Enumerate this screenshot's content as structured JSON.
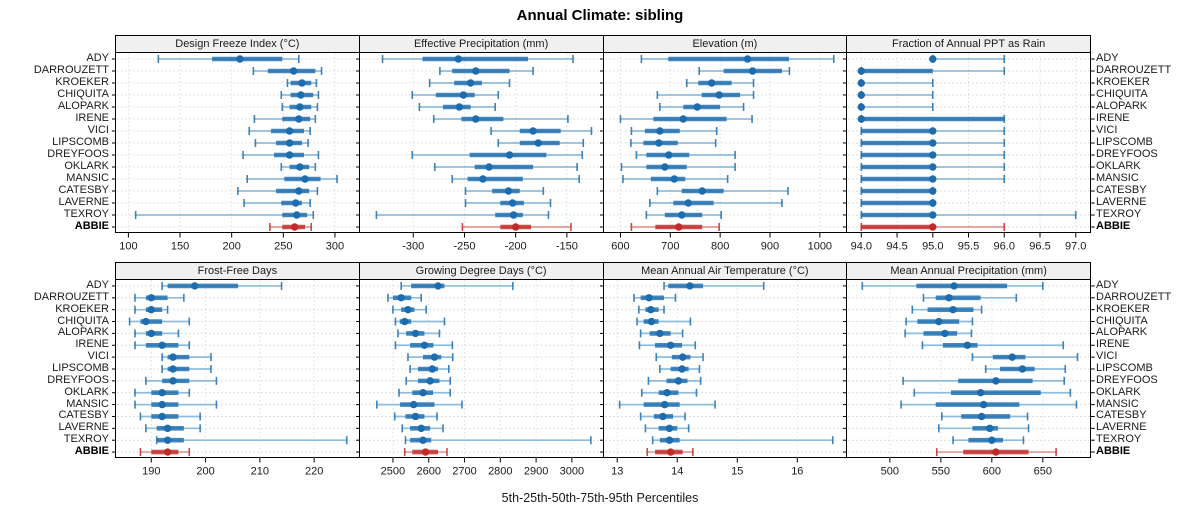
{
  "title": "Annual Climate: sibling",
  "caption": "5th-25th-50th-75th-95th Percentiles",
  "chart_data": {
    "type": "dotplot",
    "subtype": "percentile-range-trellis",
    "title": "Annual Climate: sibling",
    "caption": "5th-25th-50th-75th-95th Percentiles",
    "percentiles": [
      "5th",
      "25th",
      "50th",
      "75th",
      "95th"
    ],
    "sites": [
      "ADY",
      "DARROUZETT",
      "KROEKER",
      "CHIQUITA",
      "ALOPARK",
      "IRENE",
      "VICI",
      "LIPSCOMB",
      "DREYFOOS",
      "OKLARK",
      "MANSIC",
      "CATESBY",
      "LAVERNE",
      "TEXROY",
      "ABBIE"
    ],
    "highlight_site": "ABBIE",
    "colors": {
      "series": "#1c6cae",
      "series_light": "#8fbcdc",
      "highlight": "#c02a28",
      "highlight_light": "#de9a96",
      "strip_bg": "#f0f0f0",
      "grid": "#d4d4d4",
      "border": "#000000"
    },
    "panels": [
      {
        "label": "Design Freeze Index (°C)",
        "row": 0,
        "col": 0,
        "xlim": [
          88,
          324
        ],
        "ticks": [
          100,
          150,
          200,
          250,
          300
        ],
        "tick_labels": [
          "100",
          "150",
          "200",
          "250",
          "300"
        ],
        "values": [
          [
            129,
            181,
            208,
            249,
            265
          ],
          [
            221,
            235,
            260,
            281,
            287
          ],
          [
            254,
            257,
            268,
            277,
            282
          ],
          [
            248,
            257,
            267,
            279,
            284
          ],
          [
            249,
            256,
            266,
            277,
            283
          ],
          [
            222,
            249,
            265,
            276,
            281
          ],
          [
            217,
            238,
            256,
            270,
            276
          ],
          [
            223,
            243,
            256,
            268,
            274
          ],
          [
            211,
            241,
            256,
            270,
            284
          ],
          [
            248,
            256,
            266,
            275,
            281
          ],
          [
            215,
            251,
            271,
            286,
            302
          ],
          [
            206,
            243,
            265,
            275,
            283
          ],
          [
            212,
            248,
            262,
            268,
            276
          ],
          [
            107,
            249,
            263,
            273,
            279
          ],
          [
            237,
            249,
            261,
            271,
            277
          ]
        ]
      },
      {
        "label": "Effective Precipitation (mm)",
        "row": 0,
        "col": 1,
        "xlim": [
          -352,
          -114
        ],
        "ticks": [
          -300,
          -250,
          -200,
          -150
        ],
        "tick_labels": [
          "-300",
          "-250",
          "-200",
          "-150"
        ],
        "values": [
          [
            -330,
            -291,
            -256,
            -188,
            -144
          ],
          [
            -274,
            -262,
            -239,
            -206,
            -183
          ],
          [
            -284,
            -260,
            -244,
            -233,
            -206
          ],
          [
            -301,
            -278,
            -251,
            -240,
            -217
          ],
          [
            -294,
            -271,
            -255,
            -244,
            -220
          ],
          [
            -280,
            -253,
            -239,
            -212,
            -149
          ],
          [
            -224,
            -196,
            -183,
            -156,
            -126
          ],
          [
            -217,
            -196,
            -178,
            -157,
            -134
          ],
          [
            -301,
            -245,
            -206,
            -170,
            -135
          ],
          [
            -279,
            -240,
            -226,
            -183,
            -140
          ],
          [
            -262,
            -247,
            -232,
            -193,
            -138
          ],
          [
            -249,
            -223,
            -207,
            -196,
            -173
          ],
          [
            -249,
            -215,
            -203,
            -192,
            -166
          ],
          [
            -336,
            -220,
            -202,
            -193,
            -168
          ],
          [
            -252,
            -215,
            -200,
            -185,
            -146
          ]
        ]
      },
      {
        "label": "Elevation (m)",
        "row": 0,
        "col": 2,
        "xlim": [
          567,
          1056
        ],
        "ticks": [
          600,
          700,
          800,
          900,
          1000
        ],
        "tick_labels": [
          "600",
          "700",
          "800",
          "900",
          "1000"
        ],
        "values": [
          [
            642,
            696,
            855,
            938,
            1028
          ],
          [
            758,
            807,
            865,
            924,
            939
          ],
          [
            733,
            756,
            783,
            823,
            867
          ],
          [
            674,
            763,
            798,
            840,
            867
          ],
          [
            679,
            726,
            754,
            800,
            847
          ],
          [
            600,
            666,
            726,
            813,
            864
          ],
          [
            622,
            649,
            679,
            719,
            793
          ],
          [
            621,
            646,
            677,
            715,
            791
          ],
          [
            632,
            652,
            697,
            738,
            830
          ],
          [
            602,
            652,
            689,
            733,
            830
          ],
          [
            605,
            661,
            708,
            730,
            815
          ],
          [
            674,
            723,
            764,
            807,
            936
          ],
          [
            659,
            706,
            736,
            787,
            924
          ],
          [
            652,
            689,
            723,
            764,
            802
          ],
          [
            622,
            670,
            717,
            764,
            798
          ]
        ]
      },
      {
        "label": "Fraction of Annual PPT as Rain",
        "row": 0,
        "col": 3,
        "xlim": [
          93.8,
          97.21
        ],
        "ticks": [
          94.0,
          94.5,
          95.0,
          95.5,
          96.0,
          96.5,
          97.0
        ],
        "tick_labels": [
          "94.0",
          "94.5",
          "95.0",
          "95.5",
          "96.0",
          "96.5",
          "97.0"
        ],
        "values": [
          [
            95,
            95,
            95,
            95,
            96
          ],
          [
            94,
            94,
            94,
            95,
            96
          ],
          [
            94,
            94,
            94,
            94,
            95
          ],
          [
            94,
            94,
            94,
            94,
            95
          ],
          [
            94,
            94,
            94,
            94,
            95
          ],
          [
            94,
            94,
            94,
            96,
            96
          ],
          [
            94,
            94,
            95,
            95,
            96
          ],
          [
            94,
            94,
            95,
            95,
            96
          ],
          [
            94,
            94,
            95,
            95,
            96
          ],
          [
            94,
            94,
            95,
            95,
            96
          ],
          [
            94,
            94,
            95,
            95,
            96
          ],
          [
            94,
            94,
            95,
            95,
            95
          ],
          [
            94,
            94,
            95,
            95,
            95
          ],
          [
            94,
            94,
            95,
            95,
            97
          ],
          [
            94,
            94,
            95,
            95,
            96
          ]
        ]
      },
      {
        "label": "Frost-Free Days",
        "row": 1,
        "col": 0,
        "xlim": [
          183.5,
          228.4
        ],
        "ticks": [
          190,
          200,
          210,
          220
        ],
        "tick_labels": [
          "190",
          "200",
          "210",
          "220"
        ],
        "values": [
          [
            192,
            193,
            198,
            206,
            214
          ],
          [
            187,
            189,
            190,
            193,
            196
          ],
          [
            187,
            189,
            190,
            192,
            193
          ],
          [
            186,
            188,
            189,
            192,
            197
          ],
          [
            187,
            189,
            190,
            192,
            195
          ],
          [
            187,
            189,
            192,
            195,
            197
          ],
          [
            192,
            193,
            194,
            197,
            201
          ],
          [
            192,
            193,
            194,
            197,
            201
          ],
          [
            189,
            192,
            194,
            197,
            202
          ],
          [
            187,
            190,
            192,
            195,
            197
          ],
          [
            187,
            190,
            192,
            195,
            202
          ],
          [
            188,
            190,
            192,
            195,
            199
          ],
          [
            189,
            191,
            193,
            196,
            199
          ],
          [
            191,
            191,
            193,
            196,
            226
          ],
          [
            188,
            190,
            193,
            195,
            197
          ]
        ]
      },
      {
        "label": "Growing Degree Days (°C)",
        "row": 1,
        "col": 1,
        "xlim": [
          2408,
          3089
        ],
        "ticks": [
          2500,
          2600,
          2700,
          2800,
          2900,
          3000
        ],
        "tick_labels": [
          "2500",
          "2600",
          "2700",
          "2800",
          "2900",
          "3000"
        ],
        "values": [
          [
            2523,
            2551,
            2626,
            2644,
            2835
          ],
          [
            2486,
            2500,
            2523,
            2551,
            2579
          ],
          [
            2500,
            2523,
            2542,
            2560,
            2593
          ],
          [
            2507,
            2519,
            2533,
            2551,
            2644
          ],
          [
            2514,
            2537,
            2563,
            2588,
            2630
          ],
          [
            2507,
            2548,
            2588,
            2613,
            2666
          ],
          [
            2542,
            2584,
            2616,
            2635,
            2667
          ],
          [
            2548,
            2570,
            2610,
            2626,
            2656
          ],
          [
            2537,
            2570,
            2604,
            2630,
            2660
          ],
          [
            2517,
            2554,
            2584,
            2612,
            2660
          ],
          [
            2455,
            2520,
            2558,
            2616,
            2693
          ],
          [
            2505,
            2535,
            2563,
            2588,
            2623
          ],
          [
            2526,
            2548,
            2579,
            2604,
            2640
          ],
          [
            2535,
            2548,
            2584,
            2607,
            3053
          ],
          [
            2533,
            2554,
            2591,
            2626,
            2651
          ]
        ]
      },
      {
        "label": "Mean Annual Air Temperature (°C)",
        "row": 1,
        "col": 2,
        "xlim": [
          12.78,
          16.84
        ],
        "ticks": [
          13,
          14,
          15,
          16
        ],
        "tick_labels": [
          "13",
          "14",
          "15",
          "16"
        ],
        "values": [
          [
            13.78,
            13.85,
            14.21,
            14.43,
            15.44
          ],
          [
            13.28,
            13.39,
            13.53,
            13.78,
            13.97
          ],
          [
            13.36,
            13.47,
            13.56,
            13.69,
            13.78
          ],
          [
            13.33,
            13.44,
            13.57,
            13.69,
            14.22
          ],
          [
            13.39,
            13.54,
            13.71,
            13.89,
            14.09
          ],
          [
            13.37,
            13.63,
            13.89,
            14.08,
            14.3
          ],
          [
            13.65,
            13.91,
            14.09,
            14.22,
            14.43
          ],
          [
            13.71,
            13.89,
            14.08,
            14.19,
            14.37
          ],
          [
            13.52,
            13.82,
            14.02,
            14.17,
            14.39
          ],
          [
            13.41,
            13.69,
            13.83,
            14.02,
            14.32
          ],
          [
            13.04,
            13.44,
            13.79,
            14.04,
            14.63
          ],
          [
            13.39,
            13.61,
            13.76,
            13.93,
            14.13
          ],
          [
            13.47,
            13.69,
            13.87,
            14.0,
            14.19
          ],
          [
            13.59,
            13.71,
            13.87,
            14.04,
            16.59
          ],
          [
            13.5,
            13.63,
            13.89,
            14.09,
            14.26
          ]
        ]
      },
      {
        "label": "Mean Annual Precipitation (mm)",
        "row": 1,
        "col": 3,
        "xlim": [
          458,
          697
        ],
        "ticks": [
          500,
          550,
          600,
          650
        ],
        "tick_labels": [
          "500",
          "550",
          "600",
          "650"
        ],
        "values": [
          [
            473,
            526,
            563,
            615,
            650
          ],
          [
            533,
            545,
            558,
            589,
            624
          ],
          [
            522,
            537,
            562,
            582,
            590
          ],
          [
            516,
            527,
            548,
            568,
            581
          ],
          [
            515,
            533,
            554,
            566,
            580
          ],
          [
            532,
            552,
            576,
            586,
            670
          ],
          [
            581,
            601,
            620,
            633,
            684
          ],
          [
            594,
            608,
            630,
            642,
            672
          ],
          [
            513,
            567,
            604,
            640,
            671
          ],
          [
            524,
            560,
            589,
            648,
            677
          ],
          [
            511,
            545,
            592,
            627,
            683
          ],
          [
            551,
            570,
            590,
            618,
            635
          ],
          [
            548,
            581,
            598,
            606,
            636
          ],
          [
            562,
            577,
            600,
            611,
            631
          ],
          [
            546,
            572,
            604,
            636,
            663
          ]
        ]
      }
    ],
    "layout_hints": {
      "rows": 2,
      "cols": 4,
      "grid": "dotted",
      "axis_label_position": "bottom",
      "site_labels": "left-and-right"
    }
  }
}
